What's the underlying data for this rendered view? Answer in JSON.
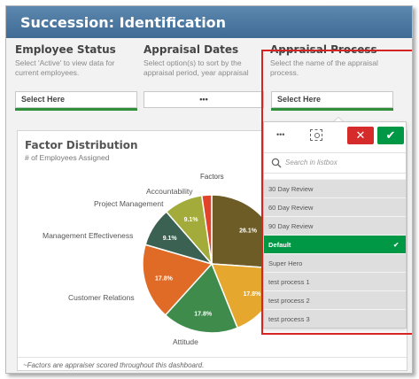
{
  "app": {
    "title": "Succession: Identification"
  },
  "filters": {
    "employee_status": {
      "label": "Employee Status",
      "desc": "Select 'Active' to view data for current employees.",
      "value": "Select Here"
    },
    "appraisal_dates": {
      "label": "Appraisal Dates",
      "desc": "Select option(s) to sort by the appraisal period, year appraisal",
      "value": "•••"
    },
    "appraisal_process": {
      "label": "Appraisal Process",
      "desc": "Select the name of the appraisal process.",
      "value": "Select Here"
    }
  },
  "panel": {
    "title": "Factor Distribution",
    "subtitle": "# of Employees Assigned",
    "footnote": "~Factors are appraiser scored throughout this dashboard."
  },
  "chart_data": {
    "type": "pie",
    "title": "Factor Distribution",
    "subtitle": "# of Employees Assigned",
    "legend_title": "Factors",
    "slices": [
      {
        "label": "",
        "value": 26.1,
        "text": "26.1%",
        "color": "#6e5c26"
      },
      {
        "label": "",
        "value": 17.8,
        "text": "17.8%",
        "color": "#e5a72e"
      },
      {
        "label": "Attitude",
        "value": 17.8,
        "text": "17.8%",
        "color": "#3e8b4c"
      },
      {
        "label": "Customer Relations",
        "value": 17.8,
        "text": "17.8%",
        "color": "#e06b27"
      },
      {
        "label": "Management Effectiveness",
        "value": 9.1,
        "text": "9.1%",
        "color": "#3b6152"
      },
      {
        "label": "Project Management",
        "value": 9.1,
        "text": "9.1%",
        "color": "#a3ac3b"
      },
      {
        "label": "Accountability",
        "value": 2.3,
        "text": "",
        "color": "#e3432b"
      }
    ]
  },
  "listbox": {
    "more_label": "•••",
    "search_placeholder": "Search in listbox",
    "cancel_icon": "✕",
    "confirm_icon": "✔",
    "selected_check": "✔",
    "items": [
      "30 Day Review",
      "60 Day Review",
      "90 Day Review",
      "Default",
      "Super Hero",
      "test process 1",
      "test process 2",
      "test process 3"
    ],
    "selected_index": 3
  },
  "colors": {
    "accent_green": "#009845",
    "cancel_red": "#d62b2b",
    "highlight_red": "#d42424",
    "title_bar": "#4a769f"
  }
}
